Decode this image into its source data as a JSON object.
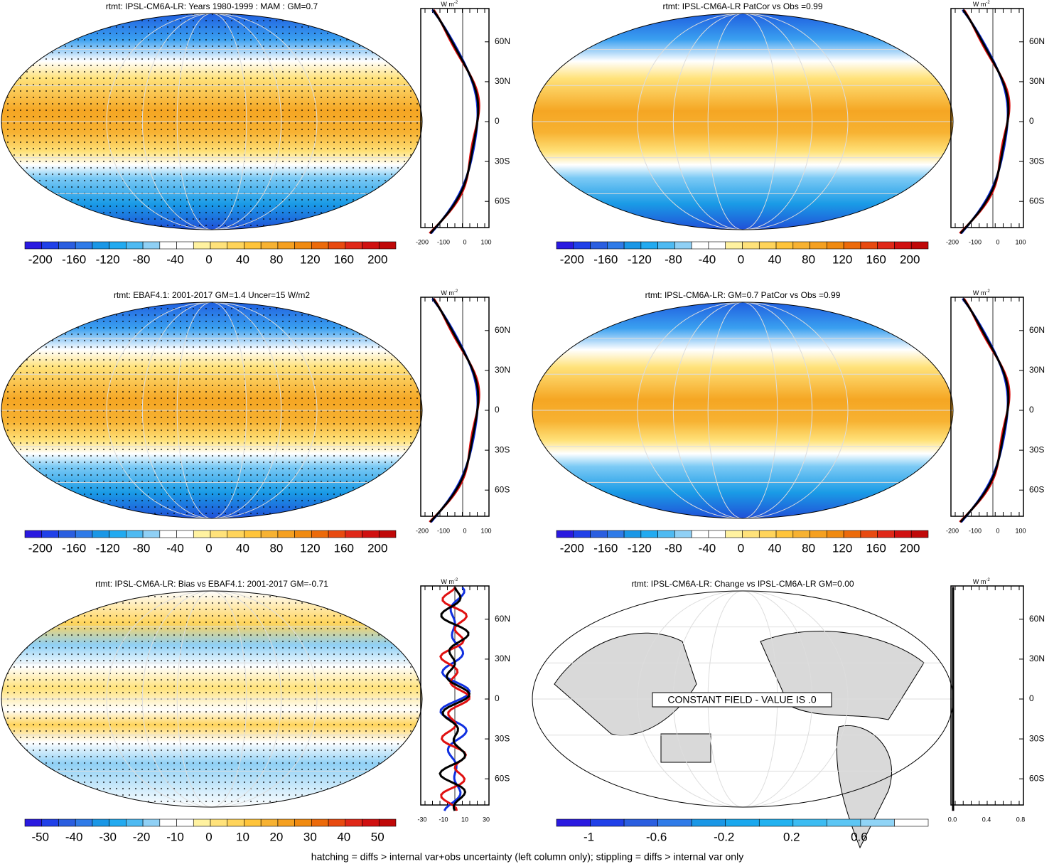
{
  "panels": [
    {
      "title": "rtmt: IPSL-CM6A-LR: Years 1980-1999 : MAM : GM=0.7",
      "colorbar_labels": [
        "-200",
        "-160",
        "-120",
        "-80",
        "-40",
        "0",
        "40",
        "80",
        "120",
        "160",
        "200"
      ],
      "profile_x_labels": [
        "-200",
        "-100",
        "0",
        "100"
      ]
    },
    {
      "title": "rtmt: IPSL-CM6A-LR PatCor vs Obs =0.99",
      "colorbar_labels": [
        "-200",
        "-160",
        "-120",
        "-80",
        "-40",
        "0",
        "40",
        "80",
        "120",
        "160",
        "200"
      ],
      "profile_x_labels": [
        "-200",
        "-100",
        "0",
        "100"
      ]
    },
    {
      "title": "rtmt: EBAF4.1: 2001-2017 GM=1.4 Uncer=15 W/m2",
      "colorbar_labels": [
        "-200",
        "-160",
        "-120",
        "-80",
        "-40",
        "0",
        "40",
        "80",
        "120",
        "160",
        "200"
      ],
      "profile_x_labels": [
        "-200",
        "-100",
        "0",
        "100"
      ]
    },
    {
      "title": "rtmt: IPSL-CM6A-LR: GM=0.7 PatCor vs Obs =0.99",
      "colorbar_labels": [
        "-200",
        "-160",
        "-120",
        "-80",
        "-40",
        "0",
        "40",
        "80",
        "120",
        "160",
        "200"
      ],
      "profile_x_labels": [
        "-200",
        "-100",
        "0",
        "100"
      ]
    },
    {
      "title": "rtmt: IPSL-CM6A-LR: Bias vs EBAF4.1: 2001-2017 GM=-0.71",
      "colorbar_labels": [
        "-50",
        "-40",
        "-30",
        "-20",
        "-10",
        "0",
        "10",
        "20",
        "30",
        "40",
        "50"
      ],
      "profile_x_labels": [
        "-30",
        "-10",
        "10",
        "30"
      ]
    },
    {
      "title": "rtmt: IPSL-CM6A-LR: Change vs IPSL-CM6A-LR GM=0.00",
      "colorbar_labels": [
        "-1",
        "-0.6",
        "-0.2",
        "0.2",
        "0.6"
      ],
      "profile_x_labels": [
        "0.0",
        "0.4",
        "0.8"
      ],
      "note": "CONSTANT FIELD - VALUE IS .0"
    }
  ],
  "profile_lat_labels": [
    "60N",
    "30N",
    "0",
    "30S",
    "60S"
  ],
  "units": "W m",
  "units_exponent": "-2",
  "footer": "hatching = diffs > internal var+obs uncertainty (left column only); stippling = diffs > internal var only"
}
